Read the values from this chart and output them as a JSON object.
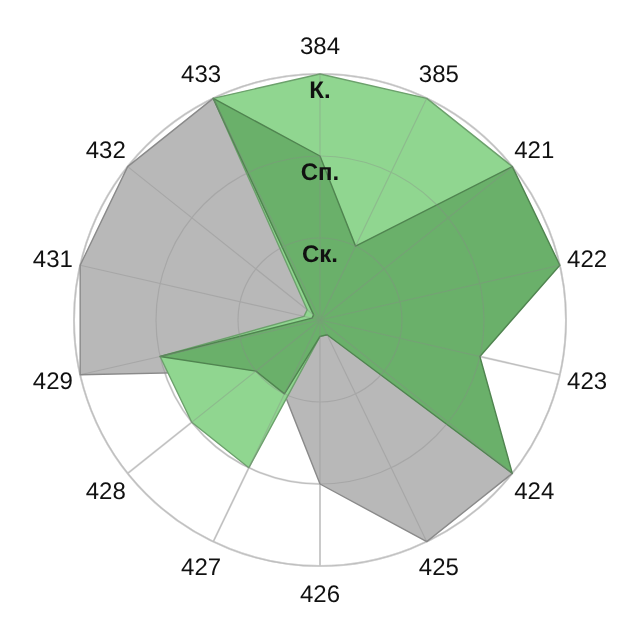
{
  "chart_data": {
    "type": "radar",
    "categories": [
      "384",
      "385",
      "421",
      "422",
      "423",
      "424",
      "425",
      "426",
      "427",
      "428",
      "429",
      "431",
      "432",
      "433"
    ],
    "ylim": [
      0,
      3
    ],
    "yticks": [
      {
        "value": 1,
        "label": "Ск."
      },
      {
        "value": 2,
        "label": "Сп."
      },
      {
        "value": 3,
        "label": "К."
      }
    ],
    "grid": true,
    "series": [
      {
        "color": "#b8b8b8",
        "values": [
          0.2,
          0.2,
          0.2,
          0.2,
          0.2,
          3,
          3,
          2,
          1,
          1,
          3,
          3,
          3,
          3
        ]
      },
      {
        "color": "#90d690",
        "values": [
          3,
          3,
          3,
          2,
          1,
          1,
          0.2,
          0.2,
          2,
          2,
          2,
          0.2,
          0.2,
          3
        ]
      },
      {
        "color": "#6ab06a",
        "values": [
          2,
          1,
          3,
          3,
          2,
          3,
          0.2,
          0.2,
          1,
          1,
          2,
          0.1,
          0.1,
          3
        ]
      }
    ]
  }
}
